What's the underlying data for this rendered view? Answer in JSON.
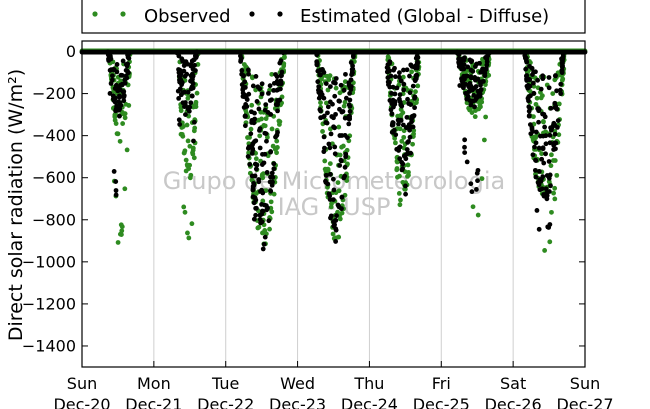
{
  "chart_data": {
    "type": "scatter",
    "title": "",
    "ylabel": "Direct solar radiation (W/m²)",
    "xlabel": "",
    "ylim": [
      -1500,
      50
    ],
    "yticks": [
      0,
      -200,
      -400,
      -600,
      -800,
      -1000,
      -1200,
      -1400
    ],
    "xlim": [
      0,
      7
    ],
    "x_units": "days since Sun Dec-20",
    "xticks": [
      {
        "day": "Sun",
        "date": "Dec-20"
      },
      {
        "day": "Mon",
        "date": "Dec-21"
      },
      {
        "day": "Tue",
        "date": "Dec-22"
      },
      {
        "day": "Wed",
        "date": "Dec-23"
      },
      {
        "day": "Thu",
        "date": "Dec-24"
      },
      {
        "day": "Fri",
        "date": "Dec-25"
      },
      {
        "day": "Sat",
        "date": "Dec-26"
      },
      {
        "day": "Sun",
        "date": "Dec-27"
      }
    ],
    "grid": {
      "x": true,
      "y": false
    },
    "legend_position": "top",
    "watermark": [
      "Grupo de Micrometeorologia",
      "IAG - USP"
    ],
    "series": [
      {
        "name": "Observed",
        "color": "#2e8b20",
        "daily": [
          {
            "start": 0.38,
            "end": 0.68,
            "peak": -420,
            "min": -980,
            "seed": 11
          },
          {
            "start": 1.34,
            "end": 1.62,
            "peak": -600,
            "min": -990,
            "seed": 12
          },
          {
            "start": 2.22,
            "end": 2.82,
            "peak": -860,
            "min": -1000,
            "seed": 13
          },
          {
            "start": 3.28,
            "end": 3.8,
            "peak": -860,
            "min": -950,
            "seed": 14
          },
          {
            "start": 4.25,
            "end": 4.7,
            "peak": -650,
            "min": -810,
            "seed": 15
          },
          {
            "start": 5.24,
            "end": 5.68,
            "peak": -300,
            "min": -840,
            "seed": 16
          },
          {
            "start": 6.18,
            "end": 6.72,
            "peak": -700,
            "min": -970,
            "seed": 17
          }
        ]
      },
      {
        "name": "Estimated (Global - Diffuse)",
        "color": "#000000",
        "daily": [
          {
            "start": 0.36,
            "end": 0.66,
            "peak": -300,
            "min": -740,
            "seed": 21
          },
          {
            "start": 1.32,
            "end": 1.6,
            "peak": -300,
            "min": -910,
            "seed": 22
          },
          {
            "start": 2.2,
            "end": 2.8,
            "peak": -800,
            "min": -960,
            "seed": 23
          },
          {
            "start": 3.26,
            "end": 3.78,
            "peak": -820,
            "min": -920,
            "seed": 24
          },
          {
            "start": 4.23,
            "end": 4.68,
            "peak": -540,
            "min": -780,
            "seed": 25
          },
          {
            "start": 5.22,
            "end": 5.66,
            "peak": -260,
            "min": -720,
            "seed": 26
          },
          {
            "start": 6.16,
            "end": 6.7,
            "peak": -700,
            "min": -930,
            "seed": 27
          }
        ]
      }
    ]
  }
}
